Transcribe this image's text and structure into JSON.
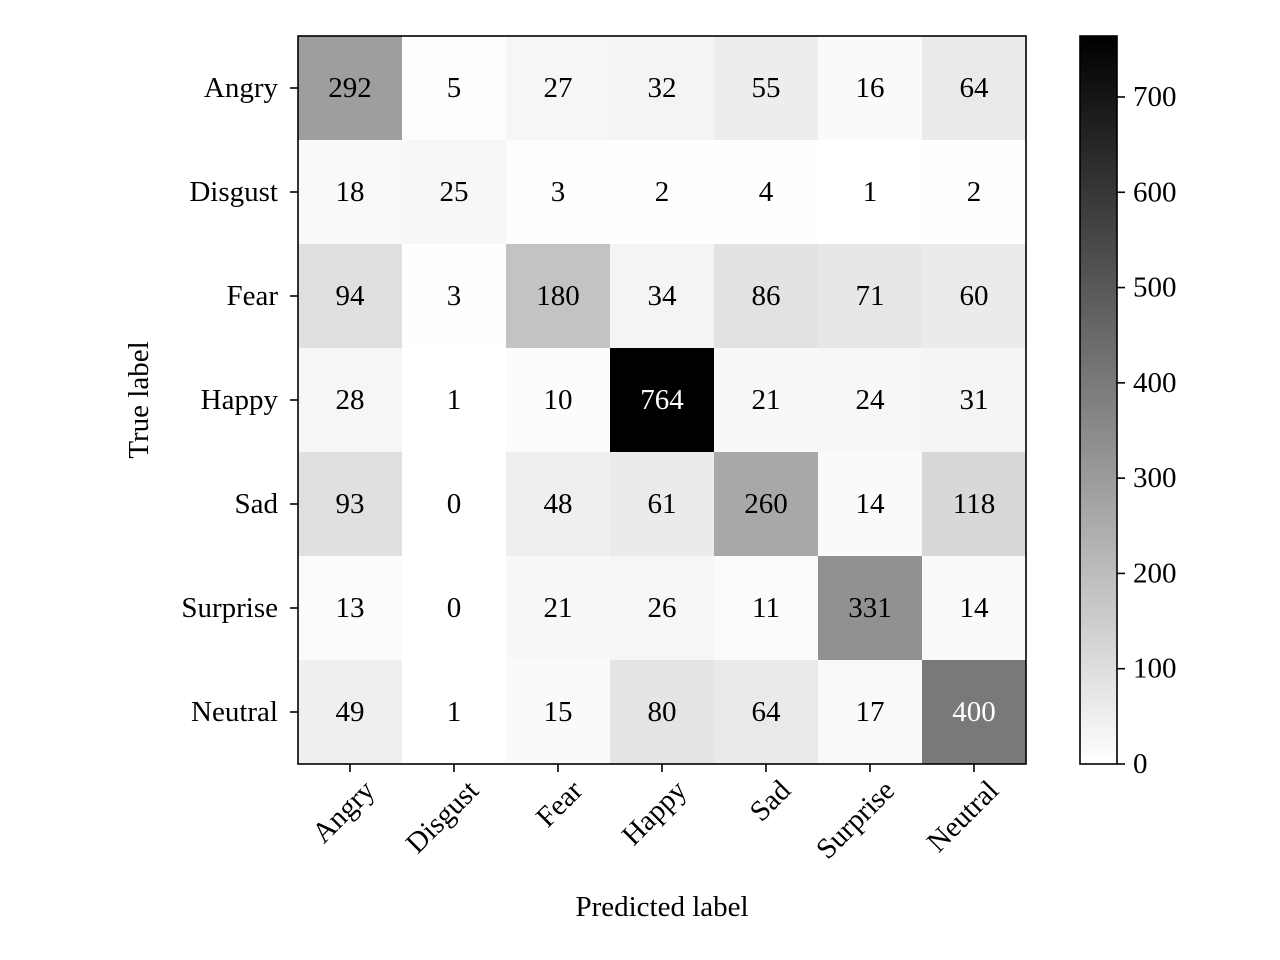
{
  "chart_data": {
    "type": "heatmap",
    "title": "",
    "xlabel": "Predicted label",
    "ylabel": "True label",
    "x_categories": [
      "Angry",
      "Disgust",
      "Fear",
      "Happy",
      "Sad",
      "Surprise",
      "Neutral"
    ],
    "y_categories": [
      "Angry",
      "Disgust",
      "Fear",
      "Happy",
      "Sad",
      "Surprise",
      "Neutral"
    ],
    "values": [
      [
        292,
        5,
        27,
        32,
        55,
        16,
        64
      ],
      [
        18,
        25,
        3,
        2,
        4,
        1,
        2
      ],
      [
        94,
        3,
        180,
        34,
        86,
        71,
        60
      ],
      [
        28,
        1,
        10,
        764,
        21,
        24,
        31
      ],
      [
        93,
        0,
        48,
        61,
        260,
        14,
        118
      ],
      [
        13,
        0,
        21,
        26,
        11,
        331,
        14
      ],
      [
        49,
        1,
        15,
        80,
        64,
        17,
        400
      ]
    ],
    "colormap": "Greys",
    "color_range": [
      0,
      764
    ],
    "colorbar_ticks": [
      0,
      100,
      200,
      300,
      400,
      500,
      600,
      700
    ],
    "grid": false,
    "legend": "colorbar-right"
  }
}
